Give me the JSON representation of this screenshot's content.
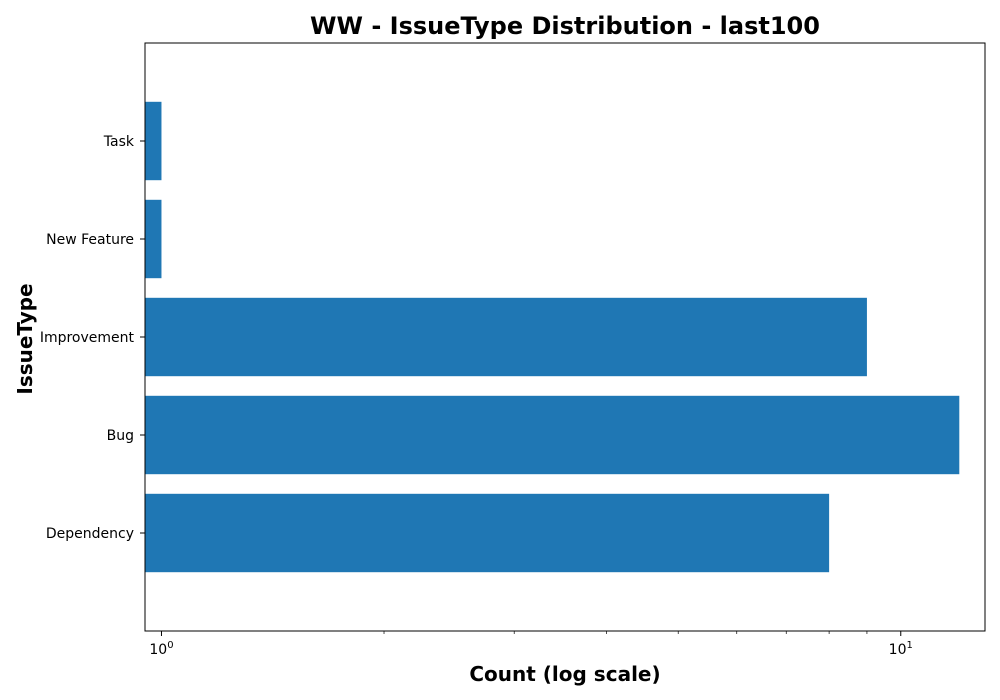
{
  "chart_data": {
    "type": "bar",
    "orientation": "horizontal",
    "title": "WW - IssueType Distribution - last100",
    "xlabel": "Count (log scale)",
    "ylabel": "IssueType",
    "x_scale": "log",
    "xlim": [
      0.95,
      13
    ],
    "x_ticks": [
      1,
      10
    ],
    "x_tick_labels": {
      "base": "10",
      "exponents": [
        "0",
        "1"
      ]
    },
    "categories": [
      "Dependency",
      "Bug",
      "Improvement",
      "New Feature",
      "Task"
    ],
    "values": [
      8,
      12,
      9,
      1,
      1
    ],
    "bar_color": "#1f77b4",
    "grid": false,
    "legend": null
  }
}
